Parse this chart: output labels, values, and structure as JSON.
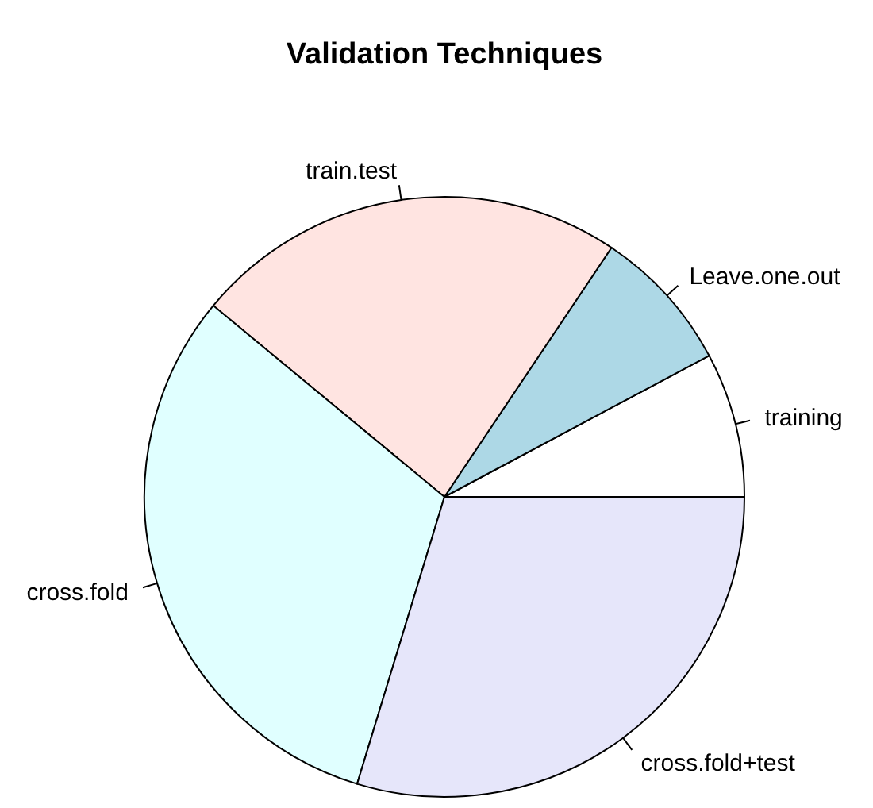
{
  "chart_data": {
    "type": "pie",
    "title": "Validation Techniques",
    "categories": [
      "training",
      "Leave.one.out",
      "train.test",
      "cross.fold",
      "cross.fold+test"
    ],
    "values": [
      7.8,
      7.8,
      23.4,
      31.3,
      29.7
    ],
    "colors": [
      "#ffffff",
      "#add8e6",
      "#ffe4e1",
      "#e0ffff",
      "#e6e6fa"
    ]
  }
}
